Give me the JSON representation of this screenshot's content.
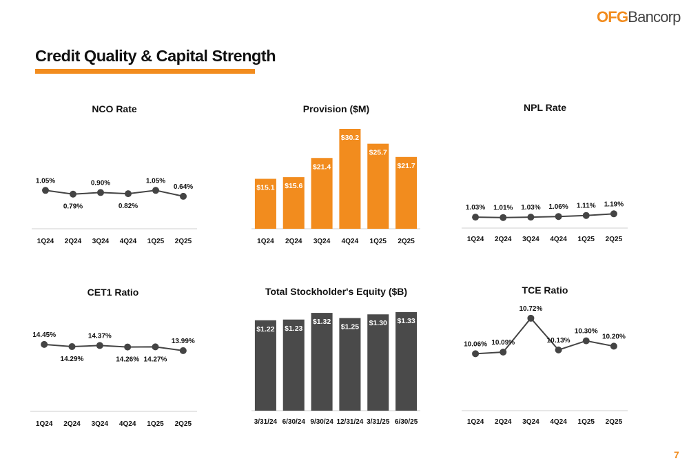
{
  "header": {
    "logo_part1": "OFG",
    "logo_part2": "Bancorp",
    "title": "Credit Quality & Capital Strength",
    "page_number": "7"
  },
  "colors": {
    "accent": "#F28C1E",
    "dark": "#4A4A4A",
    "line": "#444444"
  },
  "chart_data": [
    {
      "id": "nco",
      "type": "line",
      "title": "NCO Rate",
      "categories": [
        "1Q24",
        "2Q24",
        "3Q24",
        "4Q24",
        "1Q25",
        "2Q25"
      ],
      "values": [
        1.05,
        0.79,
        0.9,
        0.82,
        1.05,
        0.64
      ],
      "labels": [
        "1.05%",
        "0.79%",
        "0.90%",
        "0.82%",
        "1.05%",
        "0.64%"
      ],
      "label_pos": [
        "above",
        "below",
        "above",
        "below",
        "above",
        "above"
      ],
      "ylim": [
        -1.6,
        2.3
      ]
    },
    {
      "id": "provision",
      "type": "bar",
      "title": "Provision ($M)",
      "categories": [
        "1Q24",
        "2Q24",
        "3Q24",
        "4Q24",
        "1Q25",
        "2Q25"
      ],
      "values": [
        15.1,
        15.6,
        21.4,
        30.2,
        25.7,
        21.7
      ],
      "labels": [
        "$15.1",
        "$15.6",
        "$21.4",
        "$30.2",
        "$25.7",
        "$21.7"
      ],
      "ylim": [
        0,
        30.2
      ],
      "color": "#F28C1E"
    },
    {
      "id": "npl",
      "type": "line",
      "title": "NPL Rate",
      "categories": [
        "1Q24",
        "2Q24",
        "3Q24",
        "4Q24",
        "1Q25",
        "2Q25"
      ],
      "values": [
        1.03,
        1.01,
        1.03,
        1.06,
        1.11,
        1.19
      ],
      "labels": [
        "1.03%",
        "1.01%",
        "1.03%",
        "1.06%",
        "1.11%",
        "1.19%"
      ],
      "label_pos": [
        "above",
        "above",
        "above",
        "above",
        "above",
        "above"
      ],
      "ylim": [
        0.5,
        3.2
      ]
    },
    {
      "id": "cet1",
      "type": "line",
      "title": "CET1 Ratio",
      "categories": [
        "1Q24",
        "2Q24",
        "3Q24",
        "4Q24",
        "1Q25",
        "2Q25"
      ],
      "values": [
        14.45,
        14.29,
        14.37,
        14.26,
        14.27,
        13.99
      ],
      "labels": [
        "14.45%",
        "14.29%",
        "14.37%",
        "14.26%",
        "14.27%",
        "13.99%"
      ],
      "label_pos": [
        "above",
        "below",
        "above",
        "below",
        "below",
        "above"
      ],
      "ylim": [
        9.5,
        17.5
      ]
    },
    {
      "id": "equity",
      "type": "bar",
      "title": "Total Stockholder's Equity ($B)",
      "categories": [
        "3/31/24",
        "6/30/24",
        "9/30/24",
        "12/31/24",
        "3/31/25",
        "6/30/25"
      ],
      "values": [
        1.22,
        1.23,
        1.32,
        1.25,
        1.3,
        1.33
      ],
      "labels": [
        "$1.22",
        "$1.23",
        "$1.32",
        "$1.25",
        "$1.30",
        "$1.33"
      ],
      "ylim": [
        0,
        1.33
      ],
      "color": "#4A4A4A"
    },
    {
      "id": "tce",
      "type": "line",
      "title": "TCE Ratio",
      "categories": [
        "1Q24",
        "2Q24",
        "3Q24",
        "4Q24",
        "1Q25",
        "2Q25"
      ],
      "values": [
        10.06,
        10.09,
        10.72,
        10.13,
        10.3,
        10.2
      ],
      "labels": [
        "10.06%",
        "10.09%",
        "10.72%",
        "10.13%",
        "10.30%",
        "10.20%"
      ],
      "label_pos": [
        "above",
        "above",
        "above",
        "above",
        "above",
        "above"
      ],
      "ylim": [
        9.0,
        11.0
      ]
    }
  ]
}
